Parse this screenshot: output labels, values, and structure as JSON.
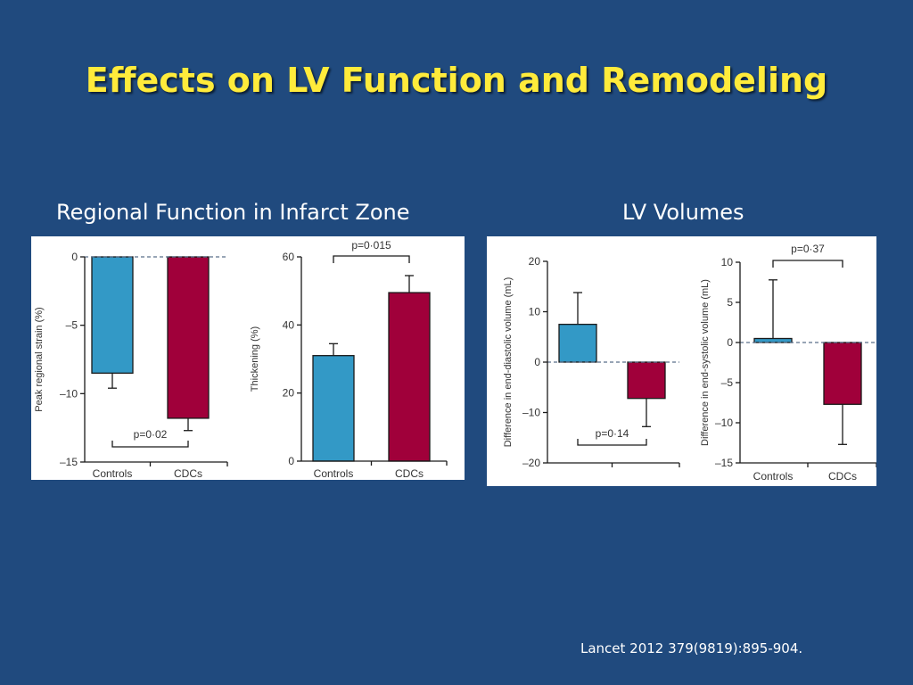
{
  "slide": {
    "title": "Effects on LV Function and Remodeling",
    "left_section_title": "Regional Function in Infarct Zone",
    "right_section_title": "LV Volumes",
    "citation": "Lancet 2012 379(9819):895-904."
  },
  "colors": {
    "background": "#204a7e",
    "title": "#ffeb3b",
    "controls_bar": "#3399c6",
    "cdcs_bar": "#a0003a"
  },
  "chart_data": [
    {
      "type": "bar",
      "categories": [
        "Controls",
        "CDCs"
      ],
      "values": [
        -8.5,
        -11.8
      ],
      "error_upper": [
        -9.6,
        -12.7
      ],
      "ylabel": "Peak regional strain (%)",
      "ylim": [
        -15,
        0
      ],
      "yticks": [
        0,
        -5,
        -10,
        -15
      ],
      "yticklabels": [
        "0",
        "–5",
        "–10",
        "–15"
      ],
      "baseline": 0,
      "annotation": "p=0·02",
      "annotation_position": "below"
    },
    {
      "type": "bar",
      "categories": [
        "Controls",
        "CDCs"
      ],
      "values": [
        31,
        49.5
      ],
      "error_upper": [
        34.5,
        54.5
      ],
      "ylabel": "Thickening (%)",
      "ylim": [
        0,
        60
      ],
      "yticks": [
        0,
        20,
        40,
        60
      ],
      "yticklabels": [
        "0",
        "20",
        "40",
        "60"
      ],
      "baseline": 0,
      "annotation": "p=0·015",
      "annotation_position": "above"
    },
    {
      "type": "bar",
      "categories": [
        "Controls",
        "CDCs"
      ],
      "values": [
        7.5,
        -7.2
      ],
      "error_upper": [
        13.8,
        -12.8
      ],
      "ylabel": "Difference in end-diastolic volume (mL)",
      "ylim": [
        -20,
        20
      ],
      "yticks": [
        20,
        10,
        0,
        -10,
        -20
      ],
      "yticklabels": [
        "20",
        "10",
        "0",
        "–10",
        "–20"
      ],
      "baseline": 0,
      "annotation": "p=0·14",
      "annotation_position": "below",
      "show_category_labels": false
    },
    {
      "type": "bar",
      "categories": [
        "Controls",
        "CDCs"
      ],
      "values": [
        0.5,
        -7.7
      ],
      "error_upper": [
        7.8,
        -12.7
      ],
      "ylabel": "Difference in end-systolic volume (mL)",
      "ylim": [
        -15,
        10
      ],
      "yticks": [
        10,
        5,
        0,
        -5,
        -10,
        -15
      ],
      "yticklabels": [
        "10",
        "5",
        "0",
        "–5",
        "–10",
        "–15"
      ],
      "baseline": 0,
      "annotation": "p=0·37",
      "annotation_position": "above"
    }
  ]
}
